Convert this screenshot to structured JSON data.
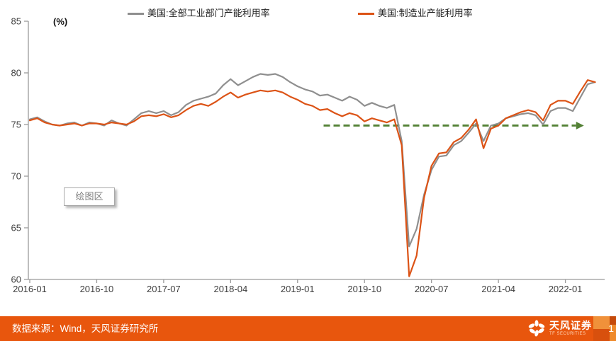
{
  "page": {
    "page_number": "1"
  },
  "legend": [
    {
      "label": "美国:全部工业部门产能利用率",
      "color": "#8f8f8f"
    },
    {
      "label": "美国:制造业产能利用率",
      "color": "#dc5316"
    }
  ],
  "plot_area_tooltip": {
    "text": "绘图区"
  },
  "footer": {
    "source_text": "数据来源：Wind，天风证券研究所",
    "logo_cn": "天风证券",
    "logo_en": "TF SECURITIES",
    "bg_color": "#e8560d"
  },
  "chart_data": {
    "type": "line",
    "unit_label": "(%)",
    "frequency": "monthly",
    "start_month": "2016-01",
    "end_month": "2022-05",
    "ylim": [
      60,
      85
    ],
    "y_ticks": [
      85,
      80,
      75,
      70,
      65,
      60
    ],
    "x_tick_labels": [
      "2016-01",
      "2016-10",
      "2017-07",
      "2018-04",
      "2019-01",
      "2019-10",
      "2020-07",
      "2021-04",
      "2022-01"
    ],
    "x_tick_months": [
      0,
      9,
      18,
      27,
      36,
      45,
      54,
      63,
      72
    ],
    "grid": false,
    "legend_position": "top",
    "axis_color": "#9a9a9a",
    "tick_label_color": "#3f3f3f",
    "series": [
      {
        "name": "美国:全部工业部门产能利用率",
        "color": "#8f8f8f",
        "values": [
          75.5,
          75.7,
          75.3,
          75.0,
          74.9,
          75.1,
          75.2,
          74.9,
          75.2,
          75.1,
          74.9,
          75.4,
          75.1,
          74.9,
          75.5,
          76.1,
          76.3,
          76.1,
          76.3,
          75.9,
          76.2,
          76.9,
          77.3,
          77.5,
          77.7,
          78.0,
          78.8,
          79.4,
          78.8,
          79.2,
          79.6,
          79.9,
          79.8,
          79.9,
          79.6,
          79.1,
          78.7,
          78.4,
          78.2,
          77.8,
          77.9,
          77.6,
          77.3,
          77.7,
          77.4,
          76.8,
          77.1,
          76.8,
          76.6,
          76.9,
          73.4,
          63.2,
          64.9,
          68.2,
          70.6,
          71.9,
          72.0,
          73.0,
          73.4,
          74.2,
          75.1,
          73.4,
          74.9,
          75.1,
          75.6,
          75.8,
          76.0,
          76.1,
          75.9,
          75.0,
          76.3,
          76.6,
          76.6,
          76.3,
          77.6,
          78.9,
          79.1
        ]
      },
      {
        "name": "美国:制造业产能利用率",
        "color": "#dc5316",
        "values": [
          75.4,
          75.6,
          75.2,
          75.0,
          74.9,
          75.0,
          75.1,
          74.9,
          75.1,
          75.1,
          75.0,
          75.2,
          75.1,
          75.0,
          75.3,
          75.8,
          75.9,
          75.8,
          76.0,
          75.7,
          75.9,
          76.4,
          76.8,
          77.0,
          76.8,
          77.2,
          77.7,
          78.1,
          77.6,
          77.9,
          78.1,
          78.3,
          78.2,
          78.3,
          78.1,
          77.7,
          77.4,
          77.0,
          76.8,
          76.4,
          76.5,
          76.1,
          75.8,
          76.1,
          75.9,
          75.3,
          75.6,
          75.4,
          75.2,
          75.5,
          73.0,
          60.3,
          62.3,
          67.9,
          71.0,
          72.2,
          72.3,
          73.3,
          73.7,
          74.5,
          75.5,
          72.7,
          74.6,
          74.9,
          75.6,
          75.9,
          76.2,
          76.4,
          76.2,
          75.4,
          76.9,
          77.3,
          77.3,
          77.0,
          78.2,
          79.3,
          79.1
        ]
      }
    ],
    "annotation_arrow": {
      "description": "horizontal dashed arrow marking ~75% level from mid-2019 to right edge",
      "value": 74.9,
      "start_month_index": 39.5,
      "end_month_index": 74.3,
      "color": "#538135"
    }
  }
}
